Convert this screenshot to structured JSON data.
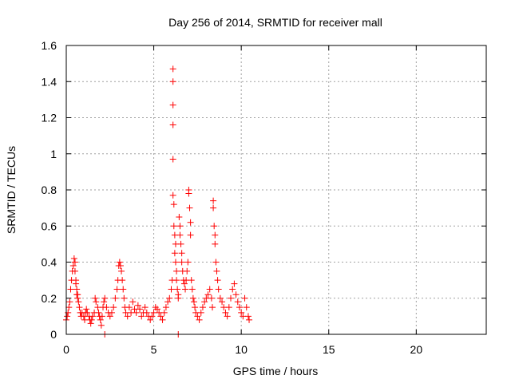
{
  "chart_data": {
    "type": "scatter",
    "title": "Day 256 of 2014, SRMTID for receiver mall",
    "xlabel": "GPS time / hours",
    "ylabel": "SRMTID / TECUs",
    "xlim": [
      0,
      24
    ],
    "ylim": [
      0,
      1.6
    ],
    "xticks": [
      0,
      5,
      10,
      15,
      20
    ],
    "xtick_labels": [
      "0",
      "5",
      "10",
      "15",
      "20"
    ],
    "yticks": [
      0,
      0.2,
      0.4,
      0.6,
      0.8,
      1,
      1.2,
      1.4,
      1.6
    ],
    "ytick_labels": [
      "0",
      "0.2",
      "0.4",
      "0.6",
      "0.8",
      "1",
      "1.2",
      "1.4",
      "1.6"
    ],
    "grid": true,
    "marker": "plus",
    "color": "#ff0000",
    "series": [
      {
        "name": "SRMTID",
        "x": [
          0.0,
          0.05,
          0.1,
          0.15,
          0.2,
          0.25,
          0.3,
          0.35,
          0.4,
          0.45,
          0.5,
          0.5,
          0.55,
          0.55,
          0.6,
          0.6,
          0.65,
          0.65,
          0.7,
          0.75,
          0.8,
          0.85,
          0.9,
          1.0,
          1.05,
          1.1,
          1.15,
          1.2,
          1.3,
          1.35,
          1.4,
          1.45,
          1.5,
          1.6,
          1.65,
          1.7,
          1.8,
          1.85,
          1.9,
          1.95,
          2.0,
          2.05,
          2.1,
          2.15,
          2.2,
          2.3,
          2.4,
          2.5,
          2.6,
          2.7,
          2.8,
          2.9,
          2.95,
          3.0,
          3.05,
          3.1,
          3.15,
          3.2,
          3.25,
          3.3,
          3.35,
          3.4,
          3.5,
          3.6,
          3.7,
          3.8,
          3.9,
          4.0,
          4.1,
          4.2,
          4.3,
          4.4,
          4.5,
          4.6,
          4.7,
          4.8,
          4.9,
          5.0,
          5.1,
          5.2,
          5.3,
          5.4,
          5.5,
          5.6,
          5.7,
          5.8,
          5.9,
          6.0,
          6.05,
          6.1,
          6.1,
          6.1,
          6.1,
          6.1,
          6.1,
          6.15,
          6.15,
          6.2,
          6.2,
          6.25,
          6.25,
          6.3,
          6.3,
          6.35,
          6.4,
          6.4,
          6.45,
          6.5,
          6.5,
          6.55,
          6.6,
          6.6,
          6.65,
          6.7,
          6.75,
          6.8,
          6.85,
          6.9,
          6.95,
          7.0,
          7.0,
          7.05,
          7.1,
          7.1,
          7.15,
          7.2,
          7.25,
          7.3,
          7.35,
          7.4,
          7.5,
          7.6,
          7.7,
          7.8,
          7.9,
          8.0,
          8.1,
          8.2,
          8.3,
          8.35,
          8.4,
          8.4,
          8.45,
          8.5,
          8.5,
          8.55,
          8.6,
          8.65,
          8.7,
          8.8,
          8.9,
          9.0,
          9.1,
          9.2,
          9.3,
          9.4,
          9.5,
          9.6,
          9.7,
          9.8,
          9.9,
          10.0,
          10.1,
          10.2,
          10.3,
          10.4,
          10.45,
          2.2,
          6.4
        ],
        "y": [
          0.08,
          0.1,
          0.12,
          0.15,
          0.18,
          0.25,
          0.3,
          0.35,
          0.38,
          0.42,
          0.4,
          0.35,
          0.3,
          0.28,
          0.25,
          0.22,
          0.2,
          0.22,
          0.18,
          0.15,
          0.12,
          0.1,
          0.12,
          0.1,
          0.08,
          0.12,
          0.14,
          0.12,
          0.1,
          0.08,
          0.06,
          0.08,
          0.1,
          0.12,
          0.2,
          0.18,
          0.15,
          0.12,
          0.1,
          0.08,
          0.05,
          0.1,
          0.15,
          0.18,
          0.2,
          0.15,
          0.12,
          0.1,
          0.12,
          0.15,
          0.2,
          0.25,
          0.3,
          0.38,
          0.4,
          0.38,
          0.35,
          0.3,
          0.25,
          0.2,
          0.15,
          0.12,
          0.1,
          0.15,
          0.12,
          0.18,
          0.14,
          0.12,
          0.16,
          0.14,
          0.1,
          0.12,
          0.15,
          0.12,
          0.1,
          0.08,
          0.1,
          0.12,
          0.15,
          0.14,
          0.12,
          0.1,
          0.08,
          0.12,
          0.15,
          0.18,
          0.2,
          0.25,
          0.3,
          1.47,
          1.4,
          1.27,
          1.16,
          0.97,
          0.77,
          0.72,
          0.6,
          0.55,
          0.45,
          0.5,
          0.4,
          0.35,
          0.3,
          0.25,
          0.2,
          0.22,
          0.65,
          0.6,
          0.55,
          0.5,
          0.45,
          0.4,
          0.35,
          0.3,
          0.28,
          0.25,
          0.3,
          0.35,
          0.4,
          0.8,
          0.78,
          0.7,
          0.62,
          0.55,
          0.3,
          0.25,
          0.2,
          0.18,
          0.15,
          0.12,
          0.1,
          0.08,
          0.12,
          0.15,
          0.18,
          0.2,
          0.22,
          0.25,
          0.2,
          0.15,
          0.74,
          0.7,
          0.6,
          0.55,
          0.5,
          0.4,
          0.35,
          0.3,
          0.25,
          0.2,
          0.18,
          0.15,
          0.12,
          0.1,
          0.15,
          0.2,
          0.25,
          0.28,
          0.22,
          0.18,
          0.15,
          0.12,
          0.1,
          0.2,
          0.15,
          0.1,
          0.08,
          0.0,
          0.0
        ]
      }
    ]
  }
}
